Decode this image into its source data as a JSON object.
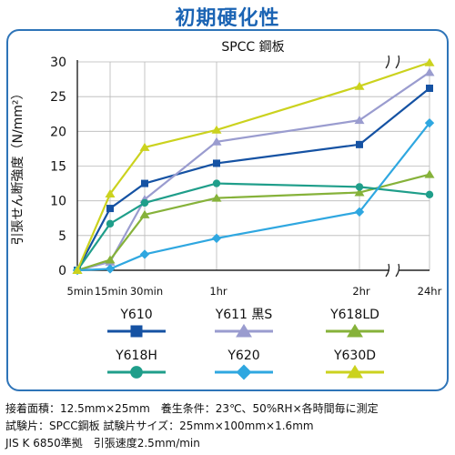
{
  "title": "初期硬化性",
  "chart_data": {
    "type": "line",
    "subtitle": "SPCC 鋼板",
    "ylabel": "引張せん断強度（N/mm²）",
    "ylim": [
      0,
      30
    ],
    "yticks": [
      0,
      5,
      10,
      15,
      20,
      25,
      30
    ],
    "x_ticks": [
      "5min",
      "15min",
      "30min",
      "1hr",
      "2hr",
      "24hr"
    ],
    "axis_break": "between 2hr and 24hr",
    "grid": true,
    "legend_position": "bottom",
    "series": [
      {
        "name": "Y610",
        "color": "#1552a3",
        "marker": "square",
        "values": [
          0,
          8.9,
          12.5,
          15.4,
          18.1,
          26.2
        ]
      },
      {
        "name": "Y611 黒S",
        "color": "#9a9ccf",
        "marker": "triangle",
        "values": [
          0,
          1.2,
          10.2,
          18.5,
          21.6,
          28.5
        ]
      },
      {
        "name": "Y618LD",
        "color": "#86b23a",
        "marker": "triangle",
        "values": [
          0,
          1.5,
          8.0,
          10.4,
          11.2,
          13.8
        ]
      },
      {
        "name": "Y618H",
        "color": "#1f9e8a",
        "marker": "circle",
        "values": [
          0,
          6.7,
          9.7,
          12.5,
          12.0,
          10.9
        ]
      },
      {
        "name": "Y620",
        "color": "#2fa7e0",
        "marker": "diamond",
        "values": [
          0,
          0.2,
          2.3,
          4.6,
          8.4,
          21.2
        ]
      },
      {
        "name": "Y630D",
        "color": "#cbd21e",
        "marker": "triangle",
        "values": [
          0,
          11.0,
          17.7,
          20.2,
          26.5,
          29.9
        ]
      }
    ]
  },
  "notes": [
    "接着面積：12.5mm×25mm　養生条件：23℃、50%RH×各時間毎に測定",
    "試験片：SPCC鋼板 試験片サイズ：25mm×100mm×1.6mm",
    "JIS K 6850準拠　引張速度2.5mm/min"
  ]
}
